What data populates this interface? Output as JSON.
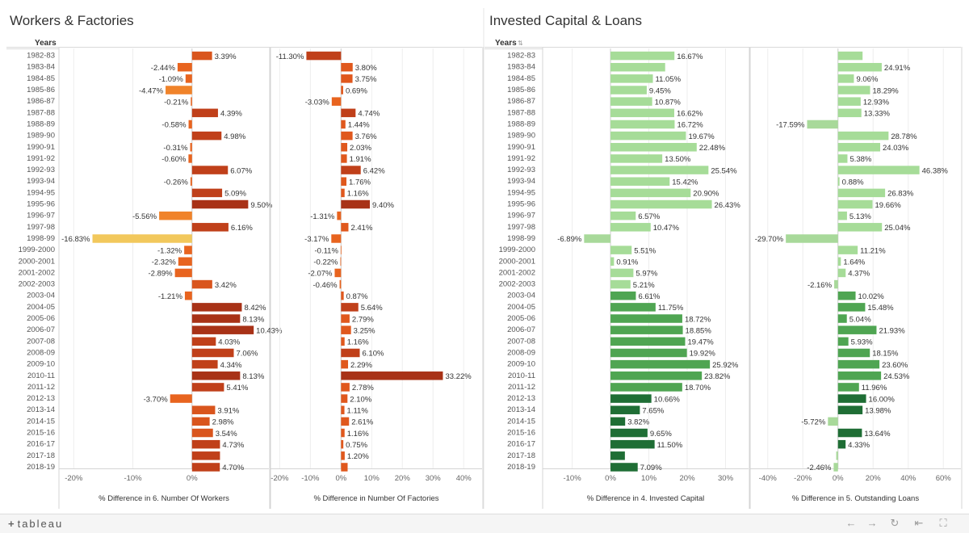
{
  "dashboard": {
    "left_title": "Workers & Factories",
    "right_title": "Invested Capital & Loans",
    "years_header": "Years",
    "sort_icon": "sort-icon"
  },
  "footer": {
    "logo_text": "tableau",
    "icons": [
      "undo-icon",
      "redo-icon",
      "revert-icon",
      "reset-icon",
      "fullscreen-icon"
    ]
  },
  "chart_data": [
    {
      "type": "bar",
      "orientation": "horizontal",
      "xlabel": "% Difference in 6. Number Of Workers",
      "xticks": [
        "-20%",
        "-10%",
        "0%"
      ],
      "xlim": [
        -0.225,
        0.13
      ],
      "colors": {
        "high": "#a83217",
        "mid": "#e8641f",
        "low": "#f2c85c"
      },
      "categories": [
        "1982-83",
        "1983-84",
        "1984-85",
        "1985-86",
        "1986-87",
        "1987-88",
        "1988-89",
        "1989-90",
        "1990-91",
        "1991-92",
        "1992-93",
        "1993-94",
        "1994-95",
        "1995-96",
        "1996-97",
        "1997-98",
        "1998-99",
        "1999-2000",
        "2000-2001",
        "2001-2002",
        "2002-2003",
        "2003-04",
        "2004-05",
        "2005-06",
        "2006-07",
        "2007-08",
        "2008-09",
        "2009-10",
        "2010-11",
        "2011-12",
        "2012-13",
        "2013-14",
        "2014-15",
        "2015-16",
        "2016-17",
        "2017-18",
        "2018-19"
      ],
      "values": [
        0.0339,
        -0.0244,
        -0.0109,
        -0.0447,
        -0.0021,
        0.0439,
        -0.0058,
        0.0498,
        -0.0031,
        -0.006,
        0.0607,
        -0.0026,
        0.0509,
        0.095,
        -0.0556,
        0.0616,
        -0.1683,
        -0.0132,
        -0.0232,
        -0.0289,
        0.0342,
        -0.0121,
        0.0842,
        0.0813,
        0.1043,
        0.0403,
        0.0706,
        0.0434,
        0.0813,
        0.0541,
        -0.037,
        0.0391,
        0.0298,
        0.0354,
        0.0473,
        0.0473,
        0.047
      ],
      "labels": [
        "3.39%",
        "-2.44%",
        "-1.09%",
        "-4.47%",
        "-0.21%",
        "4.39%",
        "-0.58%",
        "4.98%",
        "-0.31%",
        "-0.60%",
        "6.07%",
        "-0.26%",
        "5.09%",
        "9.50%",
        "-5.56%",
        "6.16%",
        "-16.83%",
        "-1.32%",
        "-2.32%",
        "-2.89%",
        "3.42%",
        "-1.21%",
        "8.42%",
        "8.13%",
        "10.43%",
        "4.03%",
        "7.06%",
        "4.34%",
        "8.13%",
        "5.41%",
        "-3.70%",
        "3.91%",
        "2.98%",
        "3.54%",
        "4.73%",
        "",
        "4.70%"
      ]
    },
    {
      "type": "bar",
      "orientation": "horizontal",
      "xlabel": "% Difference in Number Of Factories",
      "xticks": [
        "-20%",
        "-10%",
        "0%",
        "10%",
        "20%",
        "30%",
        "40%"
      ],
      "xlim": [
        -0.23,
        0.46
      ],
      "colors": {
        "high": "#a83217",
        "mid": "#e8641f",
        "low": "#f2c85c"
      },
      "values": [
        -0.113,
        0.038,
        0.0375,
        0.0069,
        -0.0303,
        0.0474,
        0.0144,
        0.0376,
        0.0203,
        0.0191,
        0.0642,
        0.0176,
        0.0116,
        0.094,
        -0.0131,
        0.0241,
        -0.0317,
        -0.0011,
        -0.0022,
        -0.0207,
        -0.0046,
        0.0087,
        0.0564,
        0.0279,
        0.0325,
        0.0116,
        0.061,
        0.0229,
        0.3322,
        0.0278,
        0.021,
        0.0111,
        0.0261,
        0.0116,
        0.0075,
        0.012,
        0.0215
      ],
      "labels": [
        "-11.30%",
        "3.80%",
        "3.75%",
        "0.69%",
        "-3.03%",
        "4.74%",
        "1.44%",
        "3.76%",
        "2.03%",
        "1.91%",
        "6.42%",
        "1.76%",
        "1.16%",
        "9.40%",
        "-1.31%",
        "2.41%",
        "-3.17%",
        "-0.11%",
        "-0.22%",
        "-2.07%",
        "-0.46%",
        "0.87%",
        "5.64%",
        "2.79%",
        "3.25%",
        "1.16%",
        "6.10%",
        "2.29%",
        "33.22%",
        "2.78%",
        "2.10%",
        "1.11%",
        "2.61%",
        "1.16%",
        "0.75%",
        "1.20%",
        ""
      ]
    },
    {
      "type": "bar",
      "orientation": "horizontal",
      "xlabel": "% Difference in 4. Invested Capital",
      "xticks": [
        "-10%",
        "0%",
        "10%",
        "20%",
        "30%"
      ],
      "xlim": [
        -0.177,
        0.36
      ],
      "colors": {
        "light": "#a6dc98",
        "mid": "#55ac55",
        "dark": "#1f6e35",
        "neg": "#a8d99a"
      },
      "values": [
        0.1667,
        0.1425,
        0.1105,
        0.0945,
        0.1087,
        0.1662,
        0.1672,
        0.1967,
        0.2248,
        0.135,
        0.2554,
        0.1542,
        0.209,
        0.2643,
        0.0657,
        0.1047,
        -0.0689,
        0.0551,
        0.0091,
        0.0597,
        0.0521,
        0.0661,
        0.1175,
        0.1872,
        0.1885,
        0.1947,
        0.1992,
        0.2592,
        0.2382,
        0.187,
        0.1066,
        0.0765,
        0.0382,
        0.0965,
        0.115,
        0.0375,
        0.0709
      ],
      "labels": [
        "16.67%",
        "",
        "11.05%",
        "9.45%",
        "10.87%",
        "16.62%",
        "16.72%",
        "19.67%",
        "22.48%",
        "13.50%",
        "25.54%",
        "15.42%",
        "20.90%",
        "26.43%",
        "6.57%",
        "10.47%",
        "-6.89%",
        "5.51%",
        "0.91%",
        "5.97%",
        "5.21%",
        "6.61%",
        "11.75%",
        "18.72%",
        "18.85%",
        "19.47%",
        "19.92%",
        "25.92%",
        "23.82%",
        "18.70%",
        "10.66%",
        "7.65%",
        "3.82%",
        "9.65%",
        "11.50%",
        "",
        "7.09%"
      ]
    },
    {
      "type": "bar",
      "orientation": "horizontal",
      "xlabel": "% Difference in 5. Outstanding Loans",
      "xticks": [
        "-40%",
        "-20%",
        "0%",
        "20%",
        "40%",
        "60%"
      ],
      "xlim": [
        -0.5,
        0.7
      ],
      "colors": {
        "light": "#a6dc98",
        "mid": "#55ac55",
        "dark": "#1f6e35",
        "neg": "#a8d99a"
      },
      "values": [
        0.14,
        0.2491,
        0.0906,
        0.1829,
        0.1293,
        0.1333,
        -0.1759,
        0.2878,
        0.2403,
        0.0538,
        0.4638,
        0.0088,
        0.2683,
        0.1966,
        0.0513,
        0.2504,
        -0.297,
        0.1121,
        0.0164,
        0.0437,
        -0.0216,
        0.1002,
        0.1548,
        0.0504,
        0.2193,
        0.0593,
        0.1815,
        0.236,
        0.2453,
        0.1196,
        0.16,
        0.1398,
        -0.0572,
        0.1364,
        0.0433,
        -0.01,
        -0.0246
      ],
      "labels": [
        "",
        "24.91%",
        "9.06%",
        "18.29%",
        "12.93%",
        "13.33%",
        "-17.59%",
        "28.78%",
        "24.03%",
        "5.38%",
        "46.38%",
        "0.88%",
        "26.83%",
        "19.66%",
        "5.13%",
        "25.04%",
        "-29.70%",
        "11.21%",
        "1.64%",
        "4.37%",
        "-2.16%",
        "10.02%",
        "15.48%",
        "5.04%",
        "21.93%",
        "5.93%",
        "18.15%",
        "23.60%",
        "24.53%",
        "11.96%",
        "16.00%",
        "13.98%",
        "-5.72%",
        "13.64%",
        "4.33%",
        "",
        "-2.46%"
      ]
    }
  ]
}
